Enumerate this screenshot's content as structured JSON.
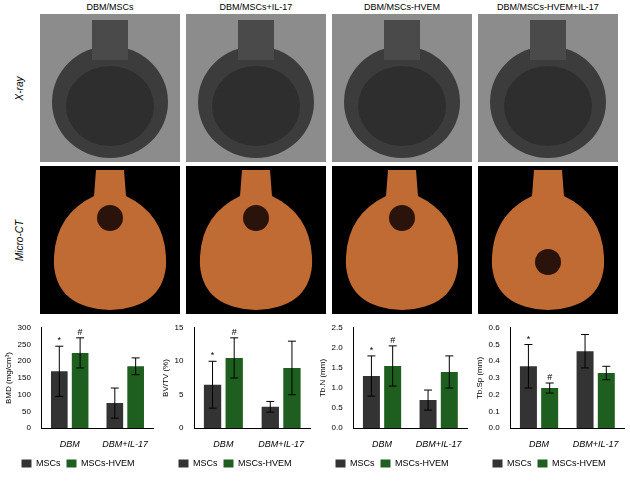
{
  "image_panels": {
    "columns": [
      "DBM/MSCs",
      "DBM/MSCs+IL-17",
      "DBM/MSCs-HVEM",
      "DBM/MSCs-HVEM+IL-17"
    ],
    "rows": [
      "X-ray",
      "Micro-CT"
    ]
  },
  "chart_data": [
    {
      "type": "bar",
      "ylabel": "BMD (mg/cm³)",
      "categories": [
        "DBM",
        "DBM+IL-17"
      ],
      "series": [
        {
          "name": "MSCs",
          "color": "#333333",
          "values": [
            170,
            75
          ],
          "errors": [
            75,
            45
          ],
          "significance": [
            "*",
            null
          ]
        },
        {
          "name": "MSCs-HVEM",
          "color": "#1e5e1e",
          "values": [
            225,
            185
          ],
          "errors": [
            45,
            25
          ],
          "significance": [
            "#",
            null
          ]
        }
      ],
      "ylim": [
        0,
        300
      ],
      "yticks": [
        0,
        50,
        100,
        150,
        200,
        250,
        300
      ],
      "grid": false,
      "legend": "bottom"
    },
    {
      "type": "bar",
      "ylabel": "BV/TV (%)",
      "categories": [
        "DBM",
        "DBM+IL-17"
      ],
      "series": [
        {
          "name": "MSCs",
          "color": "#333333",
          "values": [
            6.5,
            3.2
          ],
          "errors": [
            3.5,
            0.8
          ],
          "significance": [
            "*",
            null
          ]
        },
        {
          "name": "MSCs-HVEM",
          "color": "#1e5e1e",
          "values": [
            10.5,
            9
          ],
          "errors": [
            3,
            4
          ],
          "significance": [
            "#",
            null
          ]
        }
      ],
      "ylim": [
        0,
        15
      ],
      "yticks": [
        0,
        5,
        10,
        15
      ],
      "grid": false,
      "legend": "bottom"
    },
    {
      "type": "bar",
      "ylabel": "Tb.N (mm)",
      "categories": [
        "DBM",
        "DBM+IL-17"
      ],
      "series": [
        {
          "name": "MSCs",
          "color": "#333333",
          "values": [
            1.3,
            0.7
          ],
          "errors": [
            0.5,
            0.25
          ],
          "significance": [
            "*",
            null
          ]
        },
        {
          "name": "MSCs-HVEM",
          "color": "#1e5e1e",
          "values": [
            1.55,
            1.4
          ],
          "errors": [
            0.5,
            0.4
          ],
          "significance": [
            "#",
            null
          ]
        }
      ],
      "ylim": [
        0,
        2.5
      ],
      "yticks": [
        {
          "value": 0,
          "label": "0.0"
        },
        0.5,
        {
          "value": 1,
          "label": "1.0"
        },
        1.5,
        {
          "value": 2,
          "label": "2.0"
        },
        2.5
      ],
      "grid": false,
      "legend": "bottom"
    },
    {
      "type": "bar",
      "ylabel": "Tb.Sp (mm)",
      "categories": [
        "DBM",
        "DBM+IL-17"
      ],
      "series": [
        {
          "name": "MSCs",
          "color": "#333333",
          "values": [
            0.37,
            0.46
          ],
          "errors": [
            0.13,
            0.1
          ],
          "significance": [
            "*",
            null
          ]
        },
        {
          "name": "MSCs-HVEM",
          "color": "#1e5e1e",
          "values": [
            0.24,
            0.33
          ],
          "errors": [
            0.03,
            0.04
          ],
          "significance": [
            "#",
            null
          ]
        }
      ],
      "ylim": [
        0,
        0.6
      ],
      "yticks": [
        {
          "value": 0,
          "label": "0.0"
        },
        0.1,
        0.2,
        0.3,
        0.4,
        0.5,
        0.6
      ],
      "grid": false,
      "legend": "bottom"
    }
  ]
}
